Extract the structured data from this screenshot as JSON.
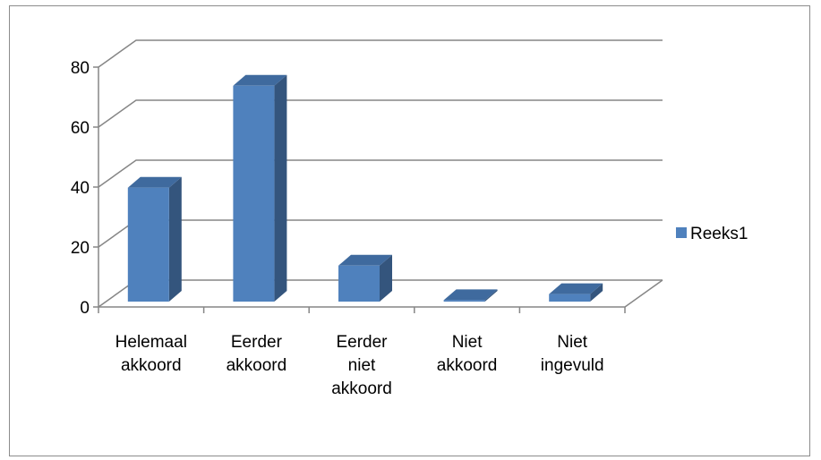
{
  "chart_data": {
    "type": "bar",
    "categories": [
      [
        "Helemaal",
        "akkoord"
      ],
      [
        "Eerder",
        "akkoord"
      ],
      [
        "Eerder",
        "niet",
        "akkoord"
      ],
      [
        "Niet",
        "akkoord"
      ],
      [
        "Niet",
        "ingevuld"
      ]
    ],
    "series": [
      {
        "name": "Reeks1",
        "values": [
          38,
          72,
          12,
          0.5,
          2.5
        ]
      }
    ],
    "ylim": [
      0,
      80
    ],
    "yticks": [
      0,
      20,
      40,
      60,
      80
    ],
    "grid": true,
    "style": "3d-clustered-column",
    "legend_position": "right",
    "colors": {
      "bar_front": "#4f81bd",
      "bar_side": "#34557d",
      "bar_top": "#3f6a9e",
      "grid": "#868686"
    }
  }
}
